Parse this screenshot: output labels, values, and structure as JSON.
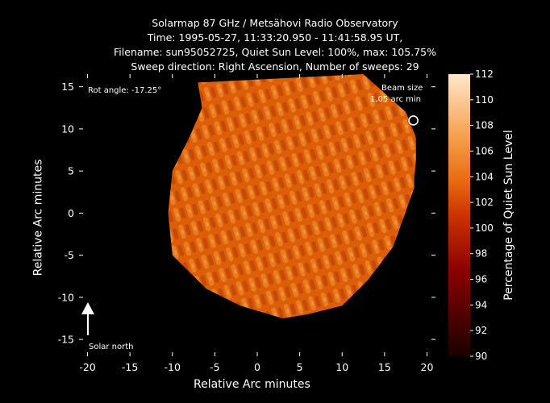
{
  "header": {
    "line1": "Solarmap 87 GHz / Metsähovi Radio Observatory",
    "line2": "Time: 1995-05-27, 11:33:20.950 - 11:41:58.95 UT,",
    "line3": "Filename: sun95052725, Quiet Sun Level: 100%, max: 105.75%",
    "line4": "Sweep direction: Right Ascension, Number of sweeps: 29"
  },
  "annotations": {
    "rot_angle": "Rot angle: -17.25°",
    "beam_size_label": "Beam size",
    "beam_size_value": "1,05 arc min",
    "solar_north": "Solar north"
  },
  "chart_data": {
    "type": "heatmap",
    "title": "Solarmap 87 GHz / Metsähovi Radio Observatory",
    "xlabel": "Relative Arc minutes",
    "ylabel": "Relative Arc minutes",
    "xlim": [
      -21,
      21
    ],
    "ylim": [
      -17,
      16.5
    ],
    "xticks": [
      -20,
      -15,
      -10,
      -5,
      0,
      5,
      10,
      15,
      20
    ],
    "yticks": [
      -15,
      -10,
      -5,
      0,
      5,
      10,
      15
    ],
    "colorbar": {
      "label": "Percentage of Quiet Sun Level",
      "range": [
        90,
        112
      ],
      "ticks": [
        90,
        92,
        94,
        96,
        98,
        100,
        102,
        104,
        106,
        108,
        110,
        112
      ]
    },
    "quiet_sun_level_percent": 100,
    "max_percent": 105.75,
    "beam_size_arcmin": 1.05,
    "rotation_angle_deg": -17.25,
    "sun_outline": [
      [
        -7,
        15.5
      ],
      [
        12.5,
        16.5
      ],
      [
        17.5,
        12
      ],
      [
        18.7,
        9
      ],
      [
        18.7,
        8
      ],
      [
        18.7,
        6.5
      ],
      [
        18.5,
        4
      ],
      [
        18.5,
        3
      ],
      [
        16,
        -4
      ],
      [
        13,
        -8
      ],
      [
        10,
        -11
      ],
      [
        6,
        -12
      ],
      [
        3,
        -12.5
      ],
      [
        -2,
        -11
      ],
      [
        -6,
        -9
      ],
      [
        -10,
        -5
      ],
      [
        -10.5,
        0
      ],
      [
        -10,
        5
      ],
      [
        -8,
        9
      ],
      [
        -6.5,
        12.5
      ]
    ],
    "colors": {
      "low": "#2a0000",
      "mid": "#e85a00",
      "high": "#ffe6c8",
      "disk": "#e4640a"
    }
  }
}
